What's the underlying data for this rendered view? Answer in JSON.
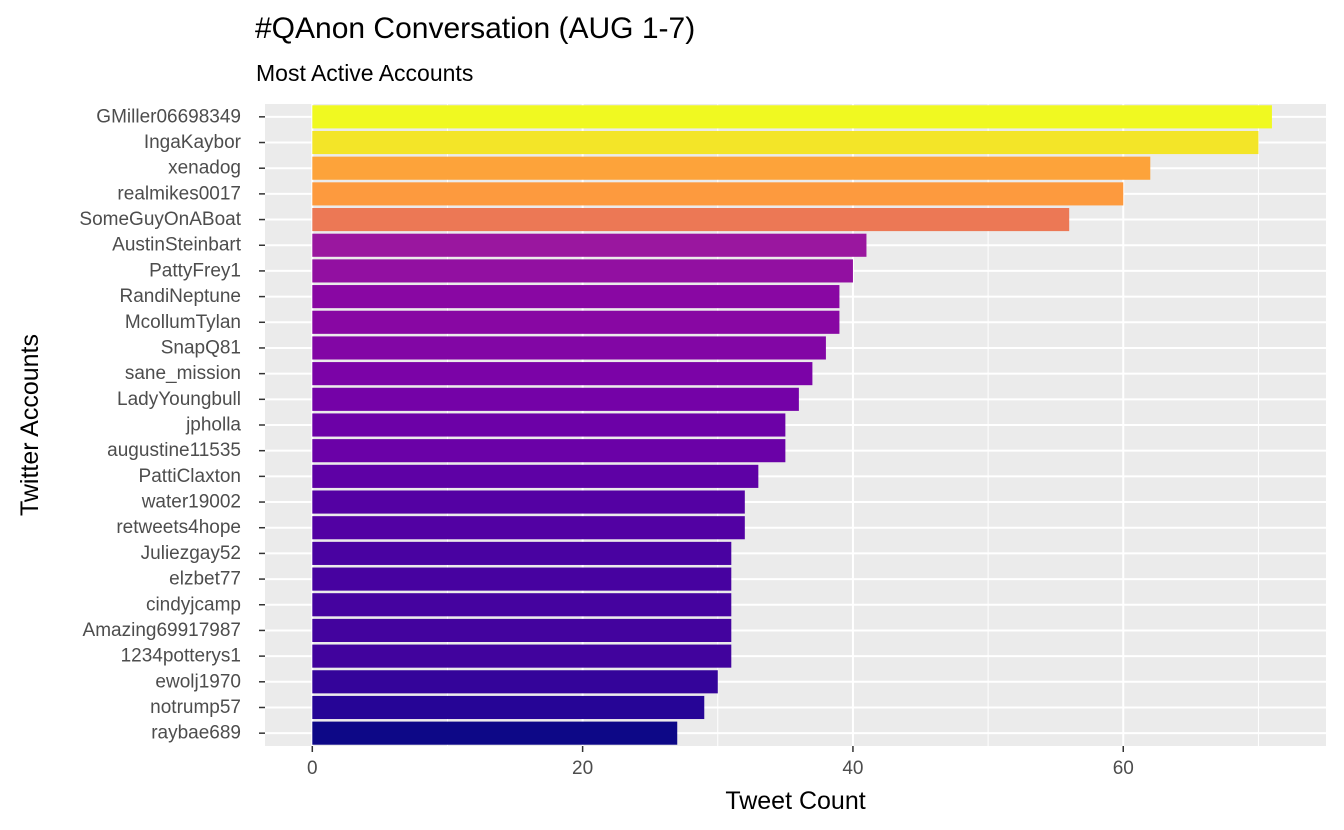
{
  "chart_data": {
    "type": "bar",
    "orientation": "horizontal",
    "title": "#QAnon Conversation (AUG 1-7)",
    "subtitle": "Most Active Accounts",
    "xlabel": "Tweet Count",
    "ylabel": "Twitter Accounts",
    "xlim": [
      -3.5,
      75
    ],
    "x_ticks": [
      0,
      20,
      40,
      60
    ],
    "grid": true,
    "legend": "none",
    "panel_background": "#ebebeb",
    "gridline_color": "#ffffff",
    "bars": [
      {
        "category": "GMiller06698349",
        "value": 71,
        "color": "#f0f921"
      },
      {
        "category": "IngaKaybor",
        "value": 70,
        "color": "#f3e528"
      },
      {
        "category": "xenadog",
        "value": 62,
        "color": "#fda33a"
      },
      {
        "category": "realmikes0017",
        "value": 60,
        "color": "#fd9a3e"
      },
      {
        "category": "SomeGuyOnABoat",
        "value": 56,
        "color": "#ec7855"
      },
      {
        "category": "AustinSteinbart",
        "value": 41,
        "color": "#9a179f"
      },
      {
        "category": "PattyFrey1",
        "value": 40,
        "color": "#9210a1"
      },
      {
        "category": "RandiNeptune",
        "value": 39,
        "color": "#8907a3"
      },
      {
        "category": "McollumTylan",
        "value": 39,
        "color": "#8807a3"
      },
      {
        "category": "SnapQ81",
        "value": 38,
        "color": "#8206a5"
      },
      {
        "category": "sane_mission",
        "value": 37,
        "color": "#7b03a7"
      },
      {
        "category": "LadyYoungbull",
        "value": 36,
        "color": "#7402a7"
      },
      {
        "category": "jpholla",
        "value": 35,
        "color": "#6c01a7"
      },
      {
        "category": "augustine11535",
        "value": 35,
        "color": "#6a01a7"
      },
      {
        "category": "PattiClaxton",
        "value": 33,
        "color": "#5e01a5"
      },
      {
        "category": "water19002",
        "value": 32,
        "color": "#5401a3"
      },
      {
        "category": "retweets4hope",
        "value": 32,
        "color": "#5201a3"
      },
      {
        "category": "Juliezgay52",
        "value": 31,
        "color": "#4902a1"
      },
      {
        "category": "elzbet77",
        "value": 31,
        "color": "#4702a0"
      },
      {
        "category": "cindyjcamp",
        "value": 31,
        "color": "#45039f"
      },
      {
        "category": "Amazing69917987",
        "value": 31,
        "color": "#43039e"
      },
      {
        "category": "1234potterys1",
        "value": 31,
        "color": "#41039d"
      },
      {
        "category": "ewolj1970",
        "value": 30,
        "color": "#34049a"
      },
      {
        "category": "notrump57",
        "value": 29,
        "color": "#260596"
      },
      {
        "category": "raybae689",
        "value": 27,
        "color": "#0d0887"
      }
    ]
  }
}
